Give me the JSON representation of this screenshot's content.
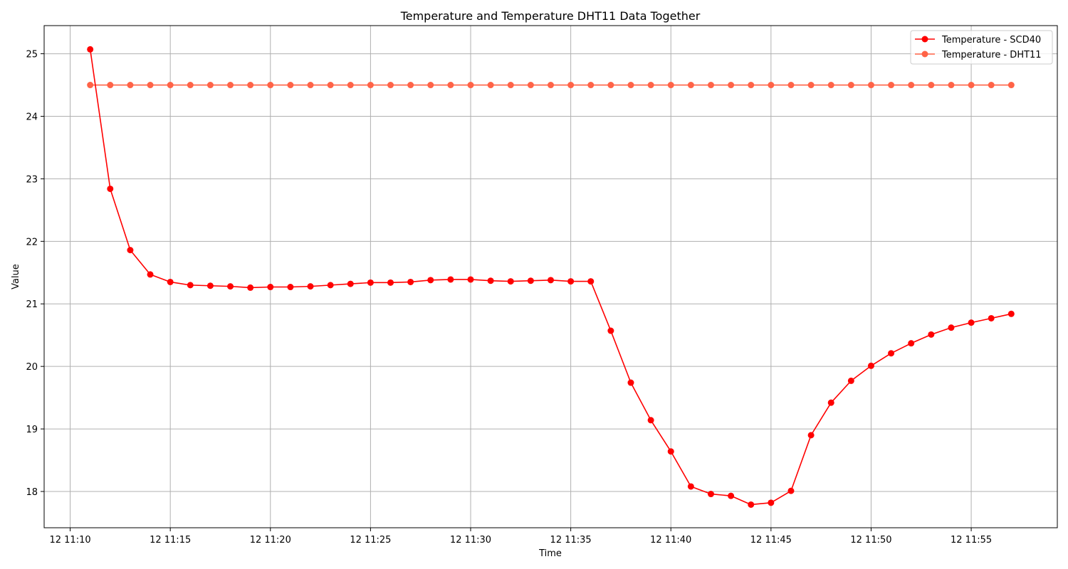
{
  "chart_data": {
    "type": "line",
    "title": "Temperature and Temperature DHT11 Data Together",
    "xlabel": "Time",
    "ylabel": "Value",
    "grid": true,
    "legend_position": "top-right",
    "x_start": "12 11:11",
    "x_tick_labels": [
      "12 11:10",
      "12 11:15",
      "12 11:20",
      "12 11:25",
      "12 11:30",
      "12 11:35",
      "12 11:40",
      "12 11:45",
      "12 11:50",
      "12 11:55"
    ],
    "y_ticks": [
      18,
      19,
      20,
      21,
      22,
      23,
      24,
      25
    ],
    "ylim": [
      17.42,
      25.45
    ],
    "xlim": [
      "12 11:08.7",
      "12 11:59.3"
    ],
    "series": [
      {
        "name": "Temperature - SCD40",
        "color": "#ff0000",
        "x": [
          "12 11:11",
          "12 11:12",
          "12 11:13",
          "12 11:14",
          "12 11:15",
          "12 11:16",
          "12 11:17",
          "12 11:18",
          "12 11:19",
          "12 11:20",
          "12 11:21",
          "12 11:22",
          "12 11:23",
          "12 11:24",
          "12 11:25",
          "12 11:26",
          "12 11:27",
          "12 11:28",
          "12 11:29",
          "12 11:30",
          "12 11:31",
          "12 11:32",
          "12 11:33",
          "12 11:34",
          "12 11:35",
          "12 11:36",
          "12 11:37",
          "12 11:38",
          "12 11:39",
          "12 11:40",
          "12 11:41",
          "12 11:42",
          "12 11:43",
          "12 11:44",
          "12 11:45",
          "12 11:46",
          "12 11:47",
          "12 11:48",
          "12 11:49",
          "12 11:50",
          "12 11:51",
          "12 11:52",
          "12 11:53",
          "12 11:54",
          "12 11:55",
          "12 11:56",
          "12 11:57"
        ],
        "values": [
          25.07,
          22.84,
          21.86,
          21.47,
          21.35,
          21.3,
          21.29,
          21.28,
          21.26,
          21.27,
          21.27,
          21.28,
          21.3,
          21.32,
          21.34,
          21.34,
          21.35,
          21.38,
          21.39,
          21.39,
          21.37,
          21.36,
          21.37,
          21.38,
          21.36,
          21.36,
          20.57,
          19.74,
          19.14,
          18.64,
          18.08,
          17.96,
          17.93,
          17.79,
          17.82,
          18.01,
          18.9,
          19.42,
          19.77,
          20.01,
          20.21,
          20.37,
          20.51,
          20.62,
          20.7,
          20.77,
          20.84
        ]
      },
      {
        "name": "Temperature - DHT11",
        "color": "#ff6347",
        "x": [
          "12 11:11",
          "12 11:12",
          "12 11:13",
          "12 11:14",
          "12 11:15",
          "12 11:16",
          "12 11:17",
          "12 11:18",
          "12 11:19",
          "12 11:20",
          "12 11:21",
          "12 11:22",
          "12 11:23",
          "12 11:24",
          "12 11:25",
          "12 11:26",
          "12 11:27",
          "12 11:28",
          "12 11:29",
          "12 11:30",
          "12 11:31",
          "12 11:32",
          "12 11:33",
          "12 11:34",
          "12 11:35",
          "12 11:36",
          "12 11:37",
          "12 11:38",
          "12 11:39",
          "12 11:40",
          "12 11:41",
          "12 11:42",
          "12 11:43",
          "12 11:44",
          "12 11:45",
          "12 11:46",
          "12 11:47",
          "12 11:48",
          "12 11:49",
          "12 11:50",
          "12 11:51",
          "12 11:52",
          "12 11:53",
          "12 11:54",
          "12 11:55",
          "12 11:56",
          "12 11:57"
        ],
        "values": [
          24.5,
          24.5,
          24.5,
          24.5,
          24.5,
          24.5,
          24.5,
          24.5,
          24.5,
          24.5,
          24.5,
          24.5,
          24.5,
          24.5,
          24.5,
          24.5,
          24.5,
          24.5,
          24.5,
          24.5,
          24.5,
          24.5,
          24.5,
          24.5,
          24.5,
          24.5,
          24.5,
          24.5,
          24.5,
          24.5,
          24.5,
          24.5,
          24.5,
          24.5,
          24.5,
          24.5,
          24.5,
          24.5,
          24.5,
          24.5,
          24.5,
          24.5,
          24.5,
          24.5,
          24.5,
          24.5,
          24.5
        ]
      }
    ]
  }
}
